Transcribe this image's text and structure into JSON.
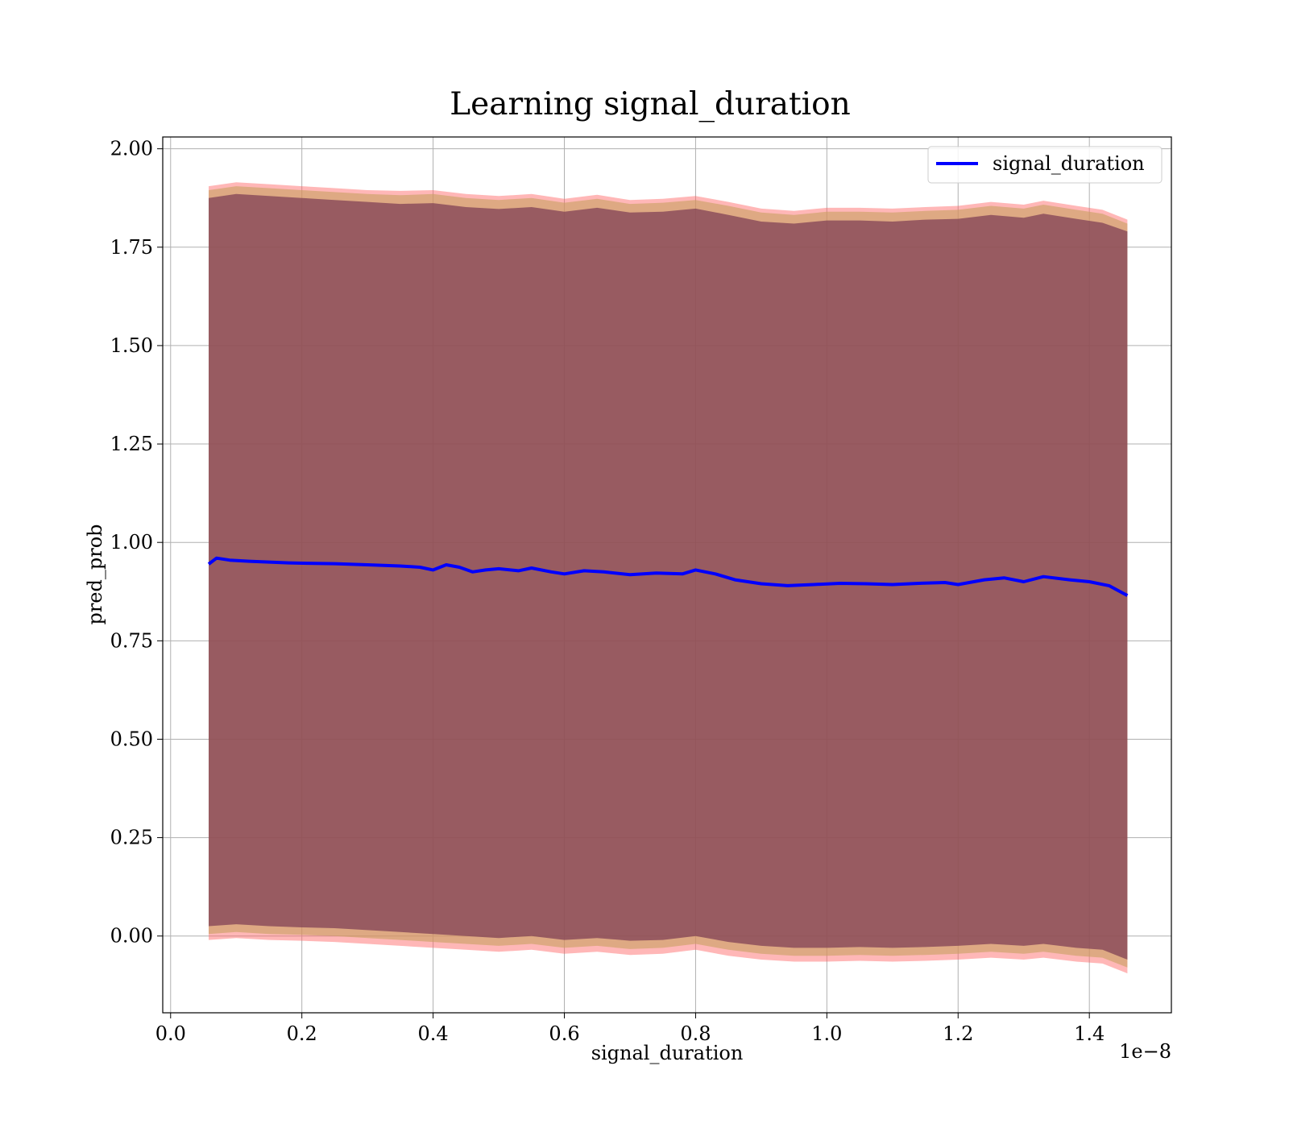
{
  "chart_data": {
    "type": "line",
    "title": "Learning signal_duration",
    "xlabel": "signal_duration",
    "ylabel": "pred_prob",
    "x_offset_text": "1e−8",
    "xlim": [
      -0.012,
      1.525
    ],
    "ylim": [
      -0.195,
      2.03
    ],
    "x_ticks": [
      0.0,
      0.2,
      0.4,
      0.6,
      0.8,
      1.0,
      1.2,
      1.4
    ],
    "x_tick_labels": [
      "0.0",
      "0.2",
      "0.4",
      "0.6",
      "0.8",
      "1.0",
      "1.2",
      "1.4"
    ],
    "y_ticks": [
      0.0,
      0.25,
      0.5,
      0.75,
      1.0,
      1.25,
      1.5,
      1.75,
      2.0
    ],
    "y_tick_labels": [
      "0.00",
      "0.25",
      "0.50",
      "0.75",
      "1.00",
      "1.25",
      "1.50",
      "1.75",
      "2.00"
    ],
    "grid": true,
    "legend_position": "top-right",
    "series": [
      {
        "name": "signal_duration",
        "color": "#0000ff",
        "x": [
          0.058,
          0.07,
          0.09,
          0.12,
          0.15,
          0.18,
          0.21,
          0.25,
          0.3,
          0.35,
          0.38,
          0.4,
          0.42,
          0.44,
          0.46,
          0.48,
          0.5,
          0.53,
          0.55,
          0.58,
          0.6,
          0.63,
          0.66,
          0.7,
          0.74,
          0.78,
          0.8,
          0.83,
          0.86,
          0.9,
          0.94,
          0.98,
          1.02,
          1.06,
          1.1,
          1.14,
          1.18,
          1.2,
          1.24,
          1.27,
          1.3,
          1.33,
          1.37,
          1.4,
          1.43,
          1.458
        ],
        "y": [
          0.945,
          0.96,
          0.955,
          0.952,
          0.95,
          0.948,
          0.947,
          0.946,
          0.943,
          0.94,
          0.937,
          0.93,
          0.943,
          0.937,
          0.925,
          0.93,
          0.933,
          0.928,
          0.935,
          0.925,
          0.92,
          0.928,
          0.925,
          0.918,
          0.922,
          0.92,
          0.93,
          0.92,
          0.905,
          0.895,
          0.89,
          0.893,
          0.896,
          0.895,
          0.893,
          0.896,
          0.898,
          0.893,
          0.905,
          0.91,
          0.9,
          0.913,
          0.905,
          0.9,
          0.89,
          0.865
        ]
      }
    ],
    "bands": [
      {
        "name": "outer band",
        "color": "#ff6060",
        "opacity": 0.45,
        "x": [
          0.058,
          0.1,
          0.15,
          0.2,
          0.25,
          0.3,
          0.35,
          0.4,
          0.45,
          0.5,
          0.55,
          0.6,
          0.65,
          0.7,
          0.75,
          0.8,
          0.85,
          0.9,
          0.95,
          1.0,
          1.05,
          1.1,
          1.15,
          1.2,
          1.25,
          1.3,
          1.33,
          1.38,
          1.42,
          1.458
        ],
        "upper": [
          1.905,
          1.915,
          1.91,
          1.905,
          1.9,
          1.895,
          1.893,
          1.895,
          1.885,
          1.88,
          1.885,
          1.873,
          1.883,
          1.87,
          1.873,
          1.88,
          1.865,
          1.848,
          1.842,
          1.85,
          1.85,
          1.848,
          1.852,
          1.855,
          1.865,
          1.858,
          1.868,
          1.855,
          1.845,
          1.82
        ],
        "lower": [
          -0.01,
          -0.005,
          -0.01,
          -0.012,
          -0.015,
          -0.02,
          -0.025,
          -0.03,
          -0.035,
          -0.04,
          -0.035,
          -0.045,
          -0.04,
          -0.048,
          -0.045,
          -0.035,
          -0.05,
          -0.06,
          -0.065,
          -0.065,
          -0.063,
          -0.065,
          -0.063,
          -0.06,
          -0.055,
          -0.06,
          -0.055,
          -0.065,
          -0.07,
          -0.095
        ]
      },
      {
        "name": "middle band",
        "color": "#c8a060",
        "opacity": 0.6,
        "x": [
          0.058,
          0.1,
          0.15,
          0.2,
          0.25,
          0.3,
          0.35,
          0.4,
          0.45,
          0.5,
          0.55,
          0.6,
          0.65,
          0.7,
          0.75,
          0.8,
          0.85,
          0.9,
          0.95,
          1.0,
          1.05,
          1.1,
          1.15,
          1.2,
          1.25,
          1.3,
          1.33,
          1.38,
          1.42,
          1.458
        ],
        "upper": [
          1.895,
          1.905,
          1.9,
          1.895,
          1.89,
          1.885,
          1.882,
          1.885,
          1.875,
          1.87,
          1.875,
          1.863,
          1.873,
          1.86,
          1.863,
          1.87,
          1.855,
          1.838,
          1.832,
          1.84,
          1.84,
          1.838,
          1.842,
          1.845,
          1.855,
          1.848,
          1.858,
          1.845,
          1.835,
          1.81
        ],
        "lower": [
          0.005,
          0.01,
          0.005,
          0.003,
          0.0,
          -0.005,
          -0.01,
          -0.015,
          -0.02,
          -0.025,
          -0.02,
          -0.03,
          -0.025,
          -0.033,
          -0.03,
          -0.02,
          -0.035,
          -0.045,
          -0.05,
          -0.05,
          -0.048,
          -0.05,
          -0.048,
          -0.045,
          -0.04,
          -0.045,
          -0.04,
          -0.05,
          -0.055,
          -0.08
        ]
      },
      {
        "name": "inner band",
        "color": "#7a3a52",
        "opacity": 0.7,
        "x": [
          0.058,
          0.1,
          0.15,
          0.2,
          0.25,
          0.3,
          0.35,
          0.4,
          0.45,
          0.5,
          0.55,
          0.6,
          0.65,
          0.7,
          0.75,
          0.8,
          0.85,
          0.9,
          0.95,
          1.0,
          1.05,
          1.1,
          1.15,
          1.2,
          1.25,
          1.3,
          1.33,
          1.38,
          1.42,
          1.458
        ],
        "upper": [
          1.875,
          1.885,
          1.88,
          1.875,
          1.87,
          1.865,
          1.86,
          1.862,
          1.852,
          1.847,
          1.852,
          1.84,
          1.85,
          1.838,
          1.84,
          1.848,
          1.832,
          1.815,
          1.81,
          1.818,
          1.818,
          1.815,
          1.82,
          1.822,
          1.832,
          1.825,
          1.835,
          1.822,
          1.812,
          1.79
        ],
        "lower": [
          0.025,
          0.03,
          0.025,
          0.022,
          0.02,
          0.015,
          0.01,
          0.005,
          0.0,
          -0.005,
          0.0,
          -0.01,
          -0.005,
          -0.012,
          -0.01,
          0.0,
          -0.015,
          -0.025,
          -0.03,
          -0.03,
          -0.028,
          -0.03,
          -0.028,
          -0.025,
          -0.02,
          -0.025,
          -0.02,
          -0.03,
          -0.035,
          -0.06
        ]
      }
    ]
  }
}
